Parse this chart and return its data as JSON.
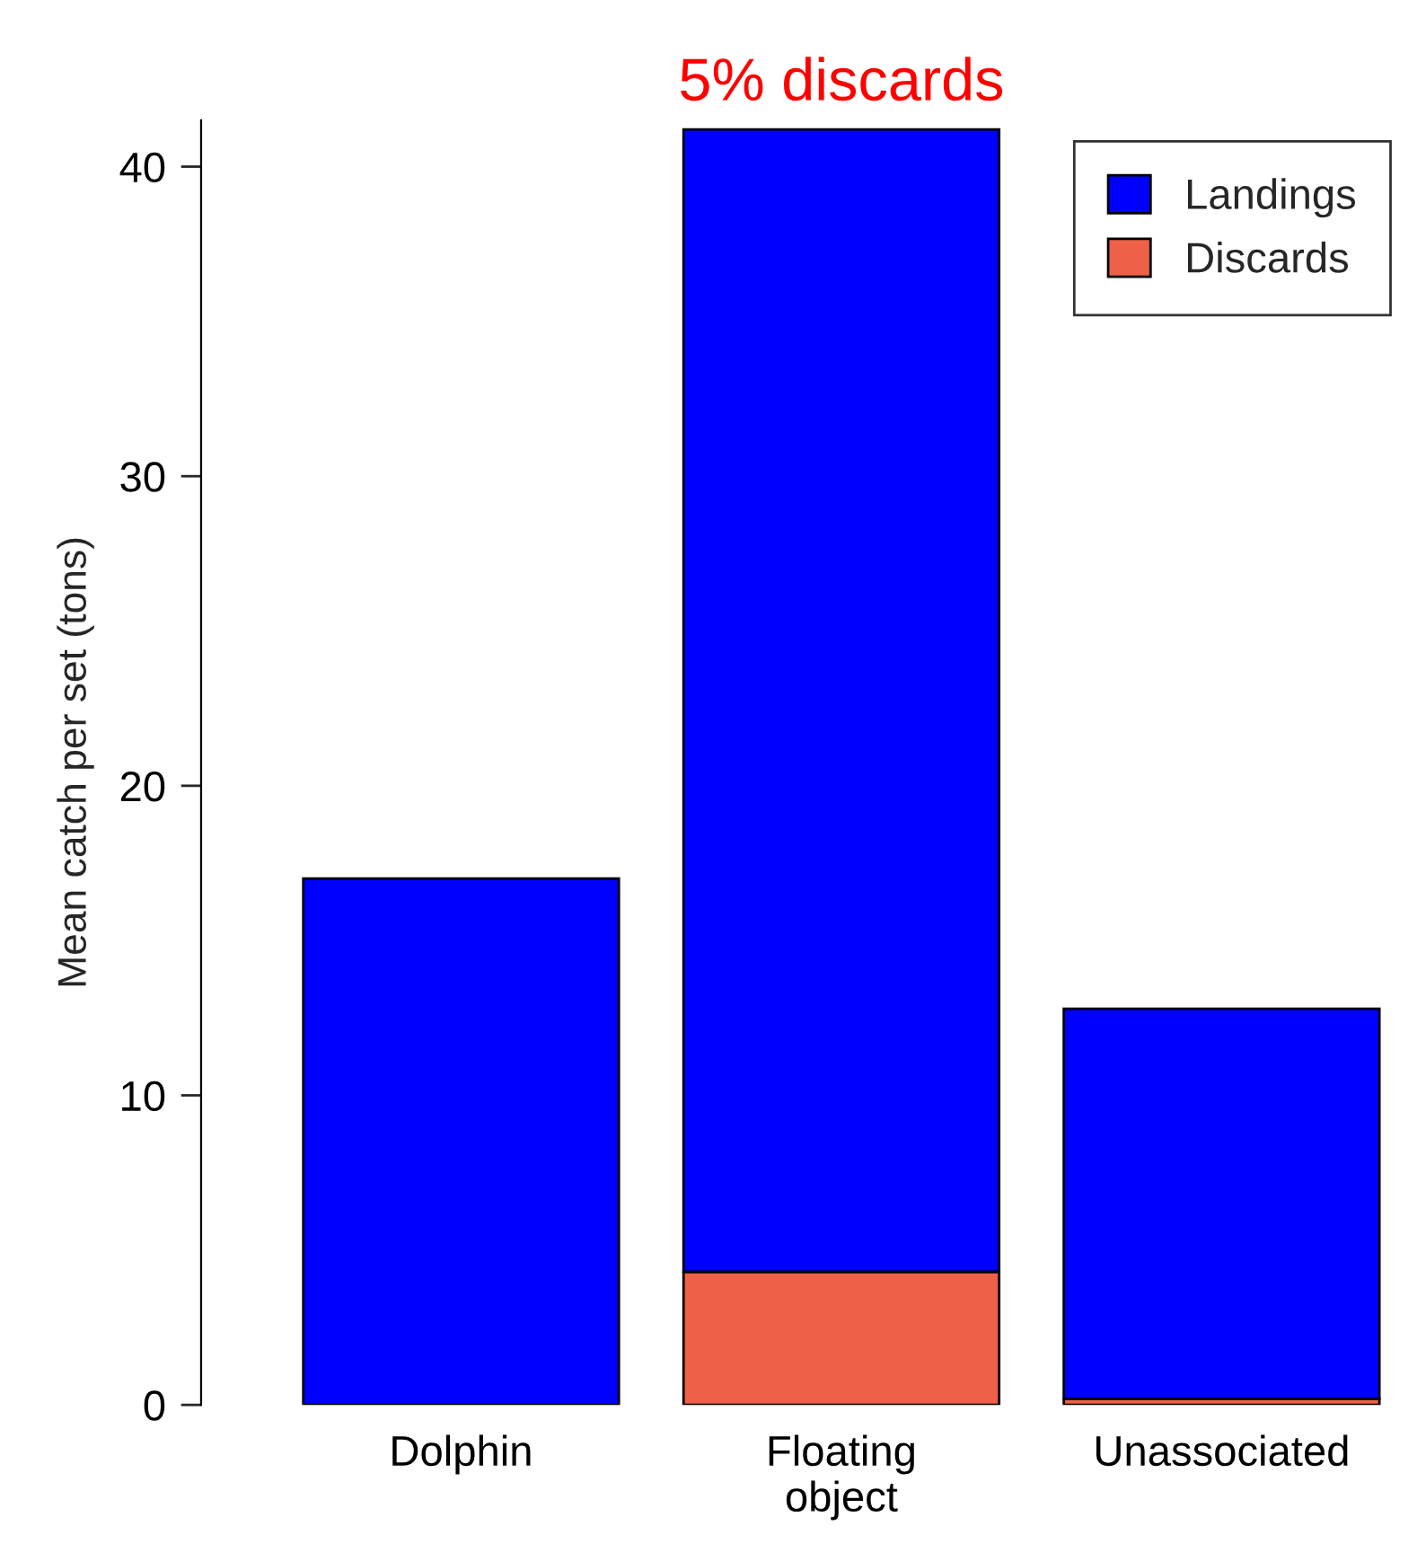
{
  "chart_data": {
    "type": "bar",
    "title": "5% discards",
    "ylabel": "Mean catch per set (tons)",
    "categories": [
      "Dolphin",
      "Floating\nobject",
      "Unassociated"
    ],
    "stacked": true,
    "series": [
      {
        "name": "Discards",
        "color": "#ee6047",
        "values": [
          null,
          4.3,
          0.2
        ]
      },
      {
        "name": "Landings",
        "color": "#0000ff",
        "values": [
          17.0,
          36.9,
          12.6
        ]
      }
    ],
    "ylim": [
      0,
      41.5
    ],
    "yticks": [
      0,
      10,
      20,
      30,
      40
    ],
    "grid": false,
    "legend": "top right"
  }
}
